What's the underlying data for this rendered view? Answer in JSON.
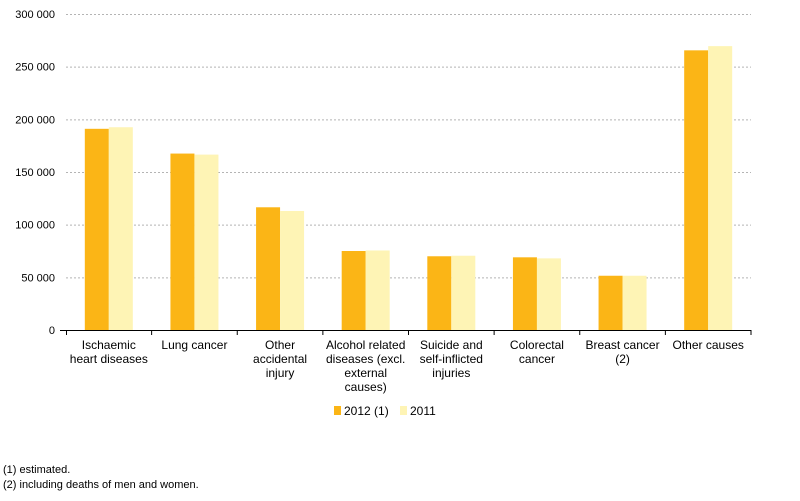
{
  "chart_data": {
    "type": "bar",
    "title": "",
    "xlabel": "",
    "ylabel": "",
    "ylim": [
      0,
      300000
    ],
    "yticks": [
      0,
      50000,
      100000,
      150000,
      200000,
      250000,
      300000
    ],
    "ytick_labels": [
      "0",
      "50 000",
      "100 000",
      "150 000",
      "200 000",
      "250 000",
      "300 000"
    ],
    "grid": "horizontal dashed",
    "legend_position": "bottom-center",
    "categories": [
      "Ischaemic heart diseases",
      "Lung cancer",
      "Other accidental injury",
      "Alcohol related diseases (excl. external causes)",
      "Suicide and self-inflicted injuries",
      "Colorectal cancer",
      "Breast cancer (2)",
      "Other causes"
    ],
    "category_label_lines": [
      [
        "Ischaemic",
        "heart diseases"
      ],
      [
        "Lung cancer"
      ],
      [
        "Other",
        "accidental",
        "injury"
      ],
      [
        "Alcohol related",
        "diseases (excl.",
        "external",
        "causes)"
      ],
      [
        "Suicide and",
        "self-inflicted",
        "injuries"
      ],
      [
        "Colorectal",
        "cancer"
      ],
      [
        "Breast cancer",
        "(2)"
      ],
      [
        "Other causes"
      ]
    ],
    "series": [
      {
        "name": "2012 (1)",
        "color": "#fbb516",
        "values": [
          191000,
          167500,
          116500,
          75000,
          70000,
          69000,
          51500,
          265500
        ]
      },
      {
        "name": "2011",
        "color": "#fef4b5",
        "values": [
          192500,
          166500,
          113000,
          75500,
          70500,
          68000,
          51500,
          269500
        ]
      }
    ]
  },
  "footnotes": {
    "note1": "(1) estimated.",
    "note2": "(2) including deaths of men and women."
  }
}
